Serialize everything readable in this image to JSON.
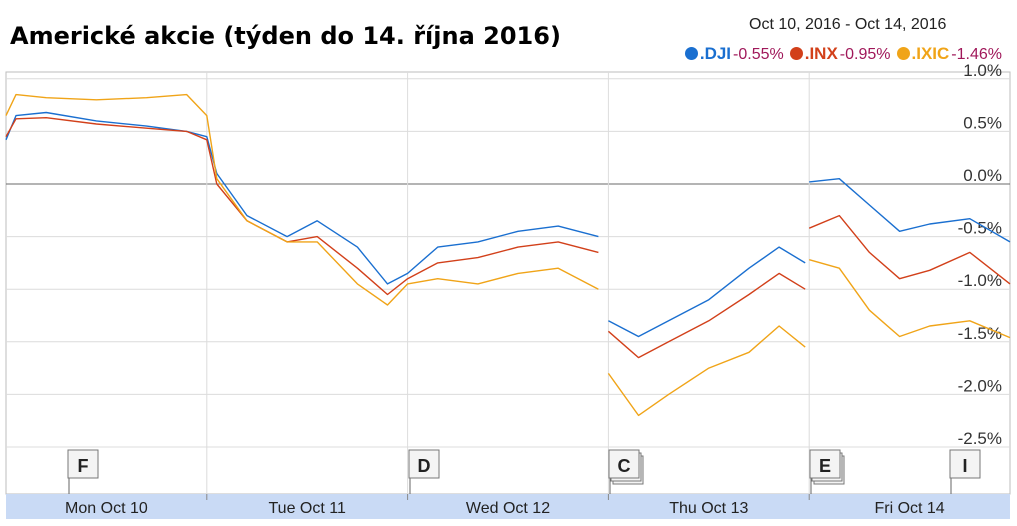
{
  "title": "Americké akcie (týden do 14. října 2016)",
  "date_range": "Oct 10, 2016  -  Oct 14, 2016",
  "legend": [
    {
      "symbol": ".DJI",
      "change": "-0.55%",
      "color": "#1a6fd0"
    },
    {
      "symbol": ".INX",
      "change": "-0.95%",
      "color": "#d2401a"
    },
    {
      "symbol": ".IXIC",
      "change": "-1.46%",
      "color": "#f0a418"
    }
  ],
  "colors": {
    "axis_band": "#c9daf5",
    "grid": "#dcdcdc",
    "zero_line": "#6a6a6a",
    "frame": "#bdbdbd"
  },
  "chart_data": {
    "type": "line",
    "x_categories": [
      "Mon Oct 10",
      "Tue Oct 11",
      "Wed Oct 12",
      "Thu Oct 13",
      "Fri Oct 14"
    ],
    "y_ticks": [
      "1.0%",
      "0.5%",
      "0.0%",
      "-0.5%",
      "-1.0%",
      "-1.5%",
      "-2.0%",
      "-2.5%"
    ],
    "ylim": [
      -2.5,
      1.0
    ],
    "y_axis_position": "right",
    "grid": true,
    "legend_position": "top-right",
    "event_markers": [
      {
        "label": "F",
        "day": "Mon Oct 10"
      },
      {
        "label": "D",
        "day": "Wed Oct 12"
      },
      {
        "label": "C",
        "day": "Thu Oct 13"
      },
      {
        "label": "E",
        "day": "Fri Oct 14"
      },
      {
        "label": "I",
        "day": "Fri Oct 14"
      }
    ],
    "series": [
      {
        "name": ".DJI",
        "color": "#1a6fd0",
        "points": [
          [
            0,
            0.42
          ],
          [
            0.05,
            0.65
          ],
          [
            0.2,
            0.68
          ],
          [
            0.45,
            0.6
          ],
          [
            0.7,
            0.55
          ],
          [
            0.9,
            0.5
          ],
          [
            1.0,
            0.45
          ],
          [
            1.05,
            0.1
          ],
          [
            1.2,
            -0.3
          ],
          [
            1.4,
            -0.5
          ],
          [
            1.55,
            -0.35
          ],
          [
            1.75,
            -0.6
          ],
          [
            1.9,
            -0.95
          ],
          [
            2.0,
            -0.85
          ],
          [
            2.15,
            -0.6
          ],
          [
            2.35,
            -0.55
          ],
          [
            2.55,
            -0.45
          ],
          [
            2.75,
            -0.4
          ],
          [
            2.95,
            -0.5
          ],
          [
            3.0,
            -1.3
          ],
          [
            3.15,
            -1.45
          ],
          [
            3.3,
            -1.3
          ],
          [
            3.5,
            -1.1
          ],
          [
            3.7,
            -0.8
          ],
          [
            3.85,
            -0.6
          ],
          [
            3.98,
            -0.75
          ],
          [
            4.0,
            0.02
          ],
          [
            4.15,
            0.05
          ],
          [
            4.3,
            -0.2
          ],
          [
            4.45,
            -0.45
          ],
          [
            4.6,
            -0.38
          ],
          [
            4.8,
            -0.33
          ],
          [
            5.0,
            -0.55
          ]
        ]
      },
      {
        "name": ".INX",
        "color": "#d2401a",
        "points": [
          [
            0,
            0.45
          ],
          [
            0.05,
            0.62
          ],
          [
            0.2,
            0.63
          ],
          [
            0.45,
            0.57
          ],
          [
            0.7,
            0.53
          ],
          [
            0.9,
            0.5
          ],
          [
            1.0,
            0.42
          ],
          [
            1.05,
            0.0
          ],
          [
            1.2,
            -0.35
          ],
          [
            1.4,
            -0.55
          ],
          [
            1.55,
            -0.5
          ],
          [
            1.75,
            -0.8
          ],
          [
            1.9,
            -1.05
          ],
          [
            2.0,
            -0.9
          ],
          [
            2.15,
            -0.75
          ],
          [
            2.35,
            -0.7
          ],
          [
            2.55,
            -0.6
          ],
          [
            2.75,
            -0.55
          ],
          [
            2.95,
            -0.65
          ],
          [
            3.0,
            -1.4
          ],
          [
            3.15,
            -1.65
          ],
          [
            3.3,
            -1.5
          ],
          [
            3.5,
            -1.3
          ],
          [
            3.7,
            -1.05
          ],
          [
            3.85,
            -0.85
          ],
          [
            3.98,
            -1.0
          ],
          [
            4.0,
            -0.42
          ],
          [
            4.15,
            -0.3
          ],
          [
            4.3,
            -0.65
          ],
          [
            4.45,
            -0.9
          ],
          [
            4.6,
            -0.82
          ],
          [
            4.8,
            -0.65
          ],
          [
            5.0,
            -0.95
          ]
        ]
      },
      {
        "name": ".IXIC",
        "color": "#f0a418",
        "points": [
          [
            0,
            0.65
          ],
          [
            0.05,
            0.85
          ],
          [
            0.2,
            0.82
          ],
          [
            0.45,
            0.8
          ],
          [
            0.7,
            0.82
          ],
          [
            0.9,
            0.85
          ],
          [
            1.0,
            0.65
          ],
          [
            1.05,
            0.05
          ],
          [
            1.2,
            -0.35
          ],
          [
            1.4,
            -0.55
          ],
          [
            1.55,
            -0.55
          ],
          [
            1.75,
            -0.95
          ],
          [
            1.9,
            -1.15
          ],
          [
            2.0,
            -0.95
          ],
          [
            2.15,
            -0.9
          ],
          [
            2.35,
            -0.95
          ],
          [
            2.55,
            -0.85
          ],
          [
            2.75,
            -0.8
          ],
          [
            2.95,
            -1.0
          ],
          [
            3.0,
            -1.8
          ],
          [
            3.15,
            -2.2
          ],
          [
            3.3,
            -2.0
          ],
          [
            3.5,
            -1.75
          ],
          [
            3.7,
            -1.6
          ],
          [
            3.85,
            -1.35
          ],
          [
            3.98,
            -1.55
          ],
          [
            4.0,
            -0.72
          ],
          [
            4.15,
            -0.8
          ],
          [
            4.3,
            -1.2
          ],
          [
            4.45,
            -1.45
          ],
          [
            4.6,
            -1.35
          ],
          [
            4.8,
            -1.3
          ],
          [
            5.0,
            -1.46
          ]
        ]
      }
    ]
  }
}
